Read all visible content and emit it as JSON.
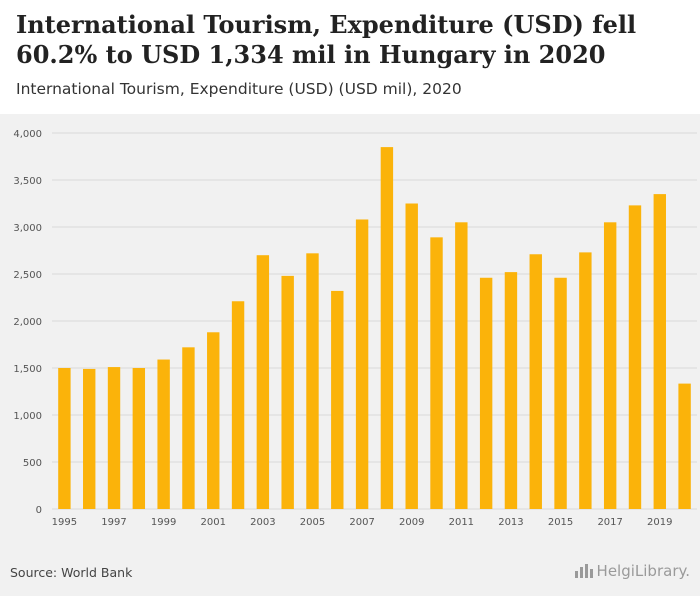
{
  "title": "International Tourism, Expenditure (USD) fell 60.2% to USD 1,334 mil in Hungary in 2020",
  "subtitle": "International Tourism, Expenditure (USD) (USD mil), 2020",
  "source": "Source: World Bank",
  "logo_text": "HelgiLibrary.",
  "colors": {
    "bar": "#FBB30A",
    "grid": "#d9d9d9",
    "background": "#f1f1f1",
    "axis_text": "#555555"
  },
  "chart_data": {
    "type": "bar",
    "title": "International Tourism, Expenditure (USD) fell 60.2% to USD 1,334 mil in Hungary in 2020",
    "xlabel": "",
    "ylabel": "USD mil",
    "categories": [
      "1995",
      "1996",
      "1997",
      "1998",
      "1999",
      "2000",
      "2001",
      "2002",
      "2003",
      "2004",
      "2005",
      "2006",
      "2007",
      "2008",
      "2009",
      "2010",
      "2011",
      "2012",
      "2013",
      "2014",
      "2015",
      "2016",
      "2017",
      "2018",
      "2019",
      "2020"
    ],
    "x_tick_labels": [
      "1995",
      "1997",
      "1999",
      "2001",
      "2003",
      "2005",
      "2007",
      "2009",
      "2011",
      "2013",
      "2015",
      "2017",
      "2019"
    ],
    "values": [
      1500,
      1490,
      1510,
      1500,
      1590,
      1720,
      1880,
      2210,
      2700,
      2480,
      2720,
      2320,
      3080,
      3850,
      3250,
      2890,
      3050,
      2460,
      2520,
      2710,
      2460,
      2730,
      3050,
      3230,
      3350,
      1334
    ],
    "ylim": [
      0,
      4000
    ],
    "y_ticks": [
      0,
      500,
      1000,
      1500,
      2000,
      2500,
      3000,
      3500,
      4000
    ],
    "y_tick_labels": [
      "0",
      "500",
      "1,000",
      "1,500",
      "2,000",
      "2,500",
      "3,000",
      "3,500",
      "4,000"
    ],
    "grid": true
  }
}
